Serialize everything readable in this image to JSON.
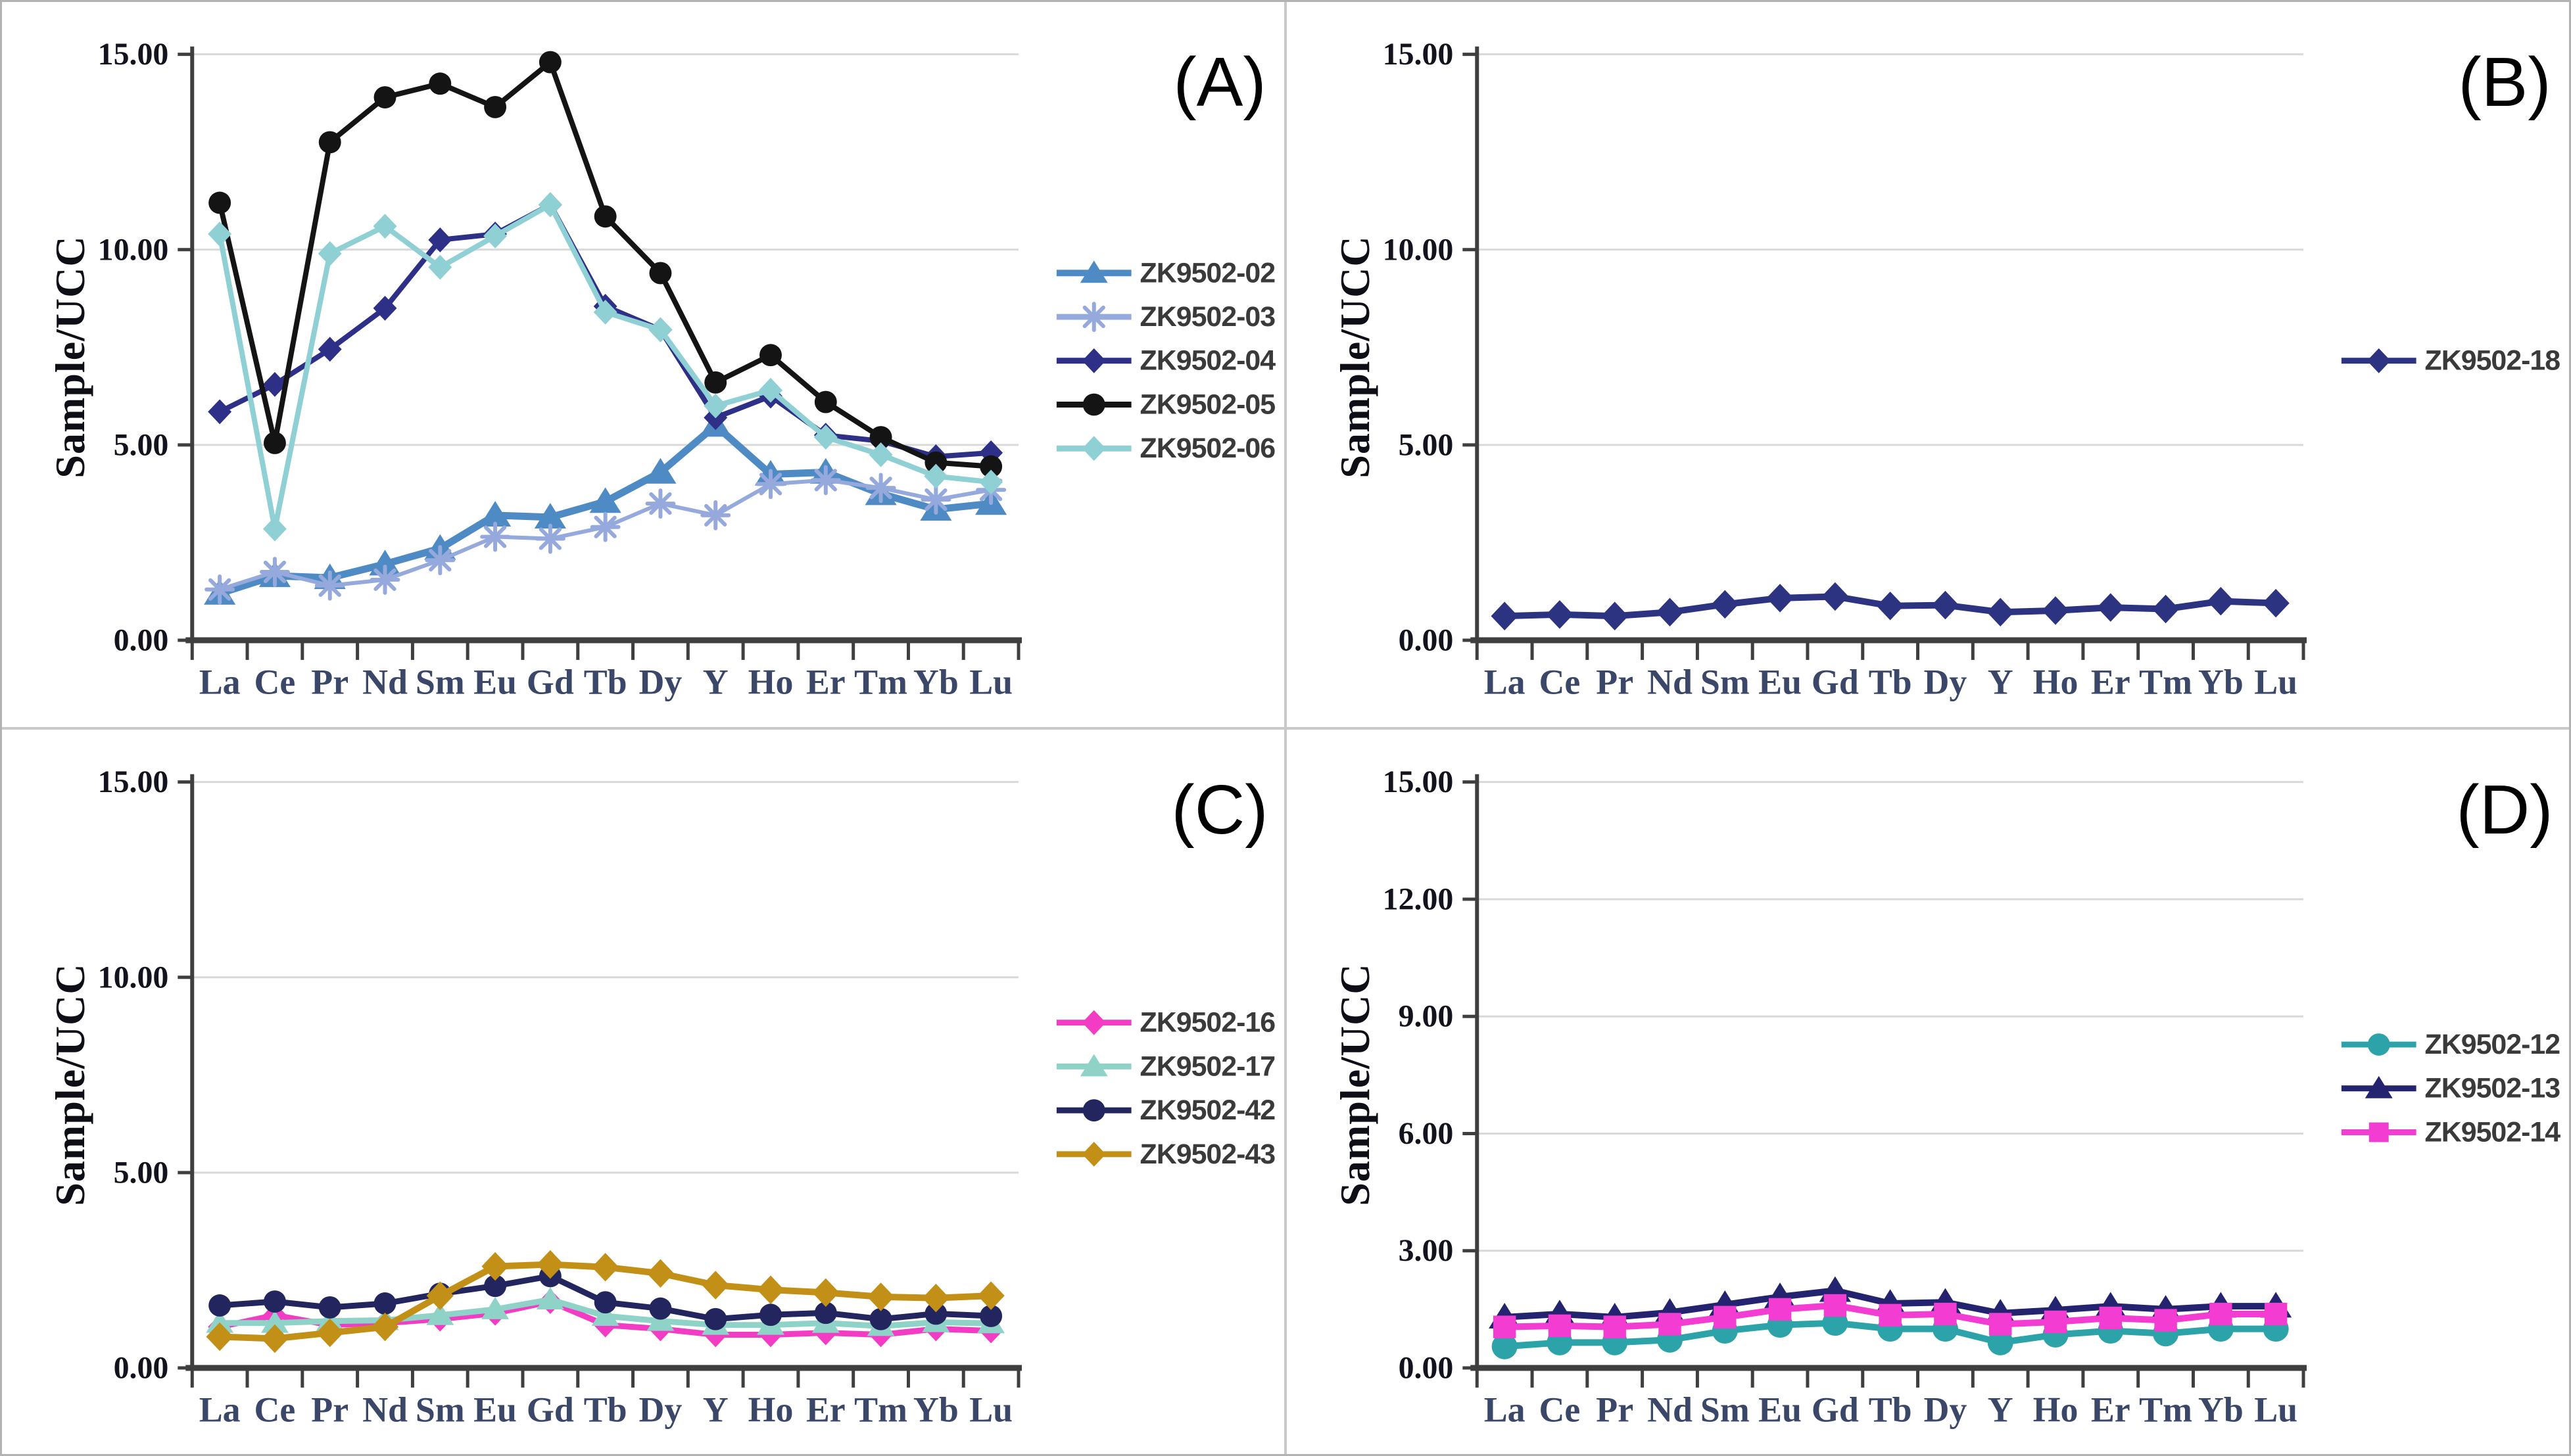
{
  "ylabel": "Sample/UCC",
  "colors": {
    "axis": "#3f3f3f",
    "grid": "#d9d9d9",
    "xtick_label": "#3a4768",
    "ytick_label": "#13131d",
    "legend_text": "#3a3a3a",
    "panel_background": "#ffffff",
    "separator": "#c9c9c9",
    "outer_border": "#b3b3b3"
  },
  "chart_data": [
    {
      "type": "line",
      "panel_label": "(A)",
      "ylabel": "Sample/UCC",
      "categories": [
        "La",
        "Ce",
        "Pr",
        "Nd",
        "Sm",
        "Eu",
        "Gd",
        "Tb",
        "Dy",
        "Y",
        "Ho",
        "Er",
        "Tm",
        "Yb",
        "Lu"
      ],
      "ylim": [
        0,
        15
      ],
      "ytick_values": [
        0,
        5,
        10,
        15
      ],
      "ytick_labels": [
        "0.00",
        "5.00",
        "10.00",
        "15.00"
      ],
      "grid": true,
      "legend_position": "right-center",
      "series": [
        {
          "name": "ZK9502-02",
          "color": "#4e8bc4",
          "marker": "triangle",
          "line_width": 11,
          "values": [
            1.2,
            1.65,
            1.6,
            1.95,
            2.35,
            3.2,
            3.15,
            3.55,
            4.3,
            5.5,
            4.25,
            4.3,
            3.75,
            3.35,
            3.5
          ]
        },
        {
          "name": "ZK9502-03",
          "color": "#96a9dc",
          "marker": "asterisk",
          "line_width": 6,
          "values": [
            1.3,
            1.75,
            1.4,
            1.55,
            2.05,
            2.65,
            2.6,
            2.9,
            3.5,
            3.2,
            4.0,
            4.1,
            3.9,
            3.6,
            3.85
          ]
        },
        {
          "name": "ZK9502-04",
          "color": "#2e2f87",
          "marker": "diamond",
          "line_width": 8,
          "values": [
            5.85,
            6.55,
            7.45,
            8.5,
            10.25,
            10.4,
            11.15,
            8.55,
            7.95,
            5.7,
            6.25,
            5.25,
            5.1,
            4.7,
            4.8
          ]
        },
        {
          "name": "ZK9502-05",
          "color": "#141414",
          "marker": "circle",
          "line_width": 8,
          "values": [
            11.2,
            5.05,
            12.75,
            13.9,
            14.25,
            13.65,
            14.8,
            10.85,
            9.4,
            6.6,
            7.3,
            6.1,
            5.2,
            4.55,
            4.45
          ]
        },
        {
          "name": "ZK9502-06",
          "color": "#8ed0d3",
          "marker": "diamond",
          "line_width": 8,
          "values": [
            10.4,
            2.85,
            9.9,
            10.6,
            9.55,
            10.35,
            11.15,
            8.4,
            7.95,
            6.0,
            6.4,
            5.2,
            4.75,
            4.2,
            4.05
          ]
        }
      ]
    },
    {
      "type": "line",
      "panel_label": "(B)",
      "ylabel": "Sample/UCC",
      "categories": [
        "La",
        "Ce",
        "Pr",
        "Nd",
        "Sm",
        "Eu",
        "Gd",
        "Tb",
        "Dy",
        "Y",
        "Ho",
        "Er",
        "Tm",
        "Yb",
        "Lu"
      ],
      "ylim": [
        0,
        15
      ],
      "ytick_values": [
        0,
        5,
        10,
        15
      ],
      "ytick_labels": [
        "0.00",
        "5.00",
        "10.00",
        "15.00"
      ],
      "grid": true,
      "legend_position": "right-center",
      "series": [
        {
          "name": "ZK9502-18",
          "color": "#2c3380",
          "marker": "diamond",
          "line_width": 10,
          "values": [
            0.62,
            0.66,
            0.62,
            0.72,
            0.92,
            1.08,
            1.12,
            0.88,
            0.9,
            0.72,
            0.76,
            0.84,
            0.8,
            1.0,
            0.95
          ]
        }
      ]
    },
    {
      "type": "line",
      "panel_label": "(C)",
      "ylabel": "Sample/UCC",
      "categories": [
        "La",
        "Ce",
        "Pr",
        "Nd",
        "Sm",
        "Eu",
        "Gd",
        "Tb",
        "Dy",
        "Y",
        "Ho",
        "Er",
        "Tm",
        "Yb",
        "Lu"
      ],
      "ylim": [
        0,
        15
      ],
      "ytick_values": [
        0,
        5,
        10,
        15
      ],
      "ytick_labels": [
        "0.00",
        "5.00",
        "10.00",
        "15.00"
      ],
      "grid": true,
      "legend_position": "right-center",
      "series": [
        {
          "name": "ZK9502-16",
          "color": "#f23cc3",
          "marker": "diamond",
          "line_width": 9,
          "values": [
            1.05,
            1.35,
            1.1,
            1.15,
            1.25,
            1.4,
            1.7,
            1.1,
            1.0,
            0.85,
            0.85,
            0.9,
            0.85,
            1.0,
            0.95
          ]
        },
        {
          "name": "ZK9502-17",
          "color": "#8fd2c7",
          "marker": "triangle",
          "line_width": 9,
          "values": [
            1.15,
            1.15,
            1.2,
            1.22,
            1.35,
            1.5,
            1.75,
            1.33,
            1.2,
            1.1,
            1.1,
            1.15,
            1.07,
            1.17,
            1.14
          ]
        },
        {
          "name": "ZK9502-42",
          "color": "#23255f",
          "marker": "circle",
          "line_width": 9,
          "values": [
            1.6,
            1.7,
            1.55,
            1.65,
            1.9,
            2.1,
            2.35,
            1.68,
            1.52,
            1.25,
            1.36,
            1.41,
            1.25,
            1.39,
            1.33
          ]
        },
        {
          "name": "ZK9502-43",
          "color": "#c39017",
          "marker": "diamond",
          "line_width": 10,
          "values": [
            0.8,
            0.75,
            0.9,
            1.05,
            1.85,
            2.6,
            2.65,
            2.58,
            2.42,
            2.12,
            2.0,
            1.93,
            1.82,
            1.79,
            1.85
          ]
        }
      ]
    },
    {
      "type": "line",
      "panel_label": "(D)",
      "ylabel": "Sample/UCC",
      "categories": [
        "La",
        "Ce",
        "Pr",
        "Nd",
        "Sm",
        "Eu",
        "Gd",
        "Tb",
        "Dy",
        "Y",
        "Ho",
        "Er",
        "Tm",
        "Yb",
        "Lu"
      ],
      "ylim": [
        0,
        15
      ],
      "ytick_values": [
        0,
        3,
        6,
        9,
        12,
        15
      ],
      "ytick_labels": [
        "0.00",
        "3.00",
        "6.00",
        "9.00",
        "12.00",
        "15.00"
      ],
      "grid": true,
      "legend_position": "right-center",
      "series": [
        {
          "name": "ZK9502-12",
          "color": "#2ba3a8",
          "marker": "circle",
          "line_width": 10,
          "values": [
            0.55,
            0.65,
            0.65,
            0.72,
            0.95,
            1.1,
            1.15,
            1.0,
            1.0,
            0.65,
            0.85,
            0.95,
            0.88,
            1.0,
            1.0
          ]
        },
        {
          "name": "ZK9502-13",
          "color": "#232370",
          "marker": "triangle",
          "line_width": 10,
          "values": [
            1.3,
            1.38,
            1.3,
            1.42,
            1.62,
            1.82,
            1.98,
            1.65,
            1.68,
            1.4,
            1.48,
            1.58,
            1.5,
            1.58,
            1.58
          ]
        },
        {
          "name": "ZK9502-14",
          "color": "#f23cd2",
          "marker": "square",
          "line_width": 10,
          "values": [
            1.05,
            1.08,
            1.05,
            1.12,
            1.3,
            1.5,
            1.6,
            1.35,
            1.38,
            1.12,
            1.18,
            1.28,
            1.22,
            1.38,
            1.38
          ]
        }
      ]
    }
  ]
}
